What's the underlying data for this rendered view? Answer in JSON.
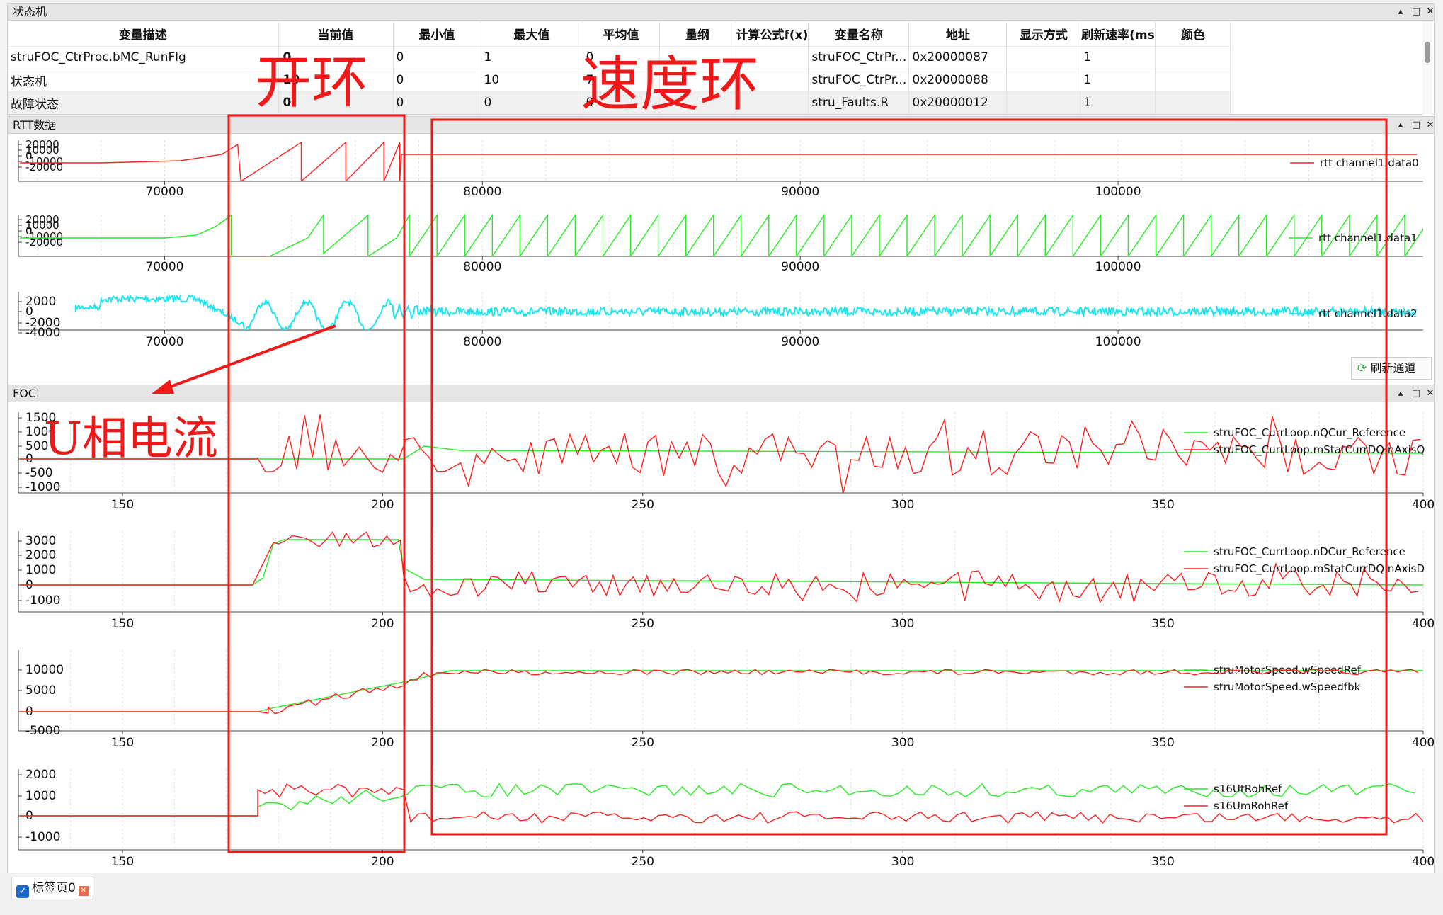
{
  "state_panel": {
    "title": "状态机",
    "columns": [
      "变量描述",
      "当前值",
      "最小值",
      "最大值",
      "平均值",
      "量纲",
      "计算公式f(x)",
      "变量名称",
      "地址",
      "显示方式",
      "刷新速率(ms",
      "颜色"
    ],
    "rows": [
      [
        "struFOC_CtrProc.bMC_RunFlg",
        "0",
        "0",
        "1",
        "0",
        "",
        "",
        "struFOC_CtrPr...",
        "0x20000087",
        "",
        "1",
        ""
      ],
      [
        "状态机",
        "10",
        "0",
        "10",
        "7",
        "",
        "",
        "struFOC_CtrPr...",
        "0x20000088",
        "",
        "1",
        ""
      ],
      [
        "故障状态",
        "0",
        "0",
        "0",
        "0",
        "",
        "",
        "stru_Faults.R",
        "0x20000012",
        "",
        "1",
        ""
      ]
    ]
  },
  "window_controls": {
    "float": "▴",
    "maximize": "□",
    "close": "✕"
  },
  "rtt_panel": {
    "title": "RTT数据",
    "refresh_label": "刷新通道"
  },
  "foc_panel": {
    "title": "FOC"
  },
  "bottom_tab": {
    "label": "标签页0"
  },
  "annotations": {
    "open_loop": "开环",
    "speed_loop": "速度环",
    "u_phase": "U相电流"
  },
  "colors": {
    "red": "#ff2020",
    "green": "#22ee22",
    "cyan": "#1ee4ee",
    "annotation": "#f01818"
  },
  "chart_data": [
    {
      "type": "line",
      "x_ticks": [
        70000,
        80000,
        90000,
        100000
      ],
      "xlim": [
        65400,
        109600
      ],
      "y_ticks": [
        "20000",
        "10000",
        "0",
        "-10000",
        "-20000"
      ],
      "series": [
        {
          "name": "rtt channel1.data0",
          "color": "red"
        }
      ]
    },
    {
      "type": "line",
      "x_ticks": [
        70000,
        80000,
        90000,
        100000
      ],
      "xlim": [
        65400,
        109600
      ],
      "y_ticks": [
        "20000",
        "10000",
        "0",
        "-10000",
        "-20000"
      ],
      "series": [
        {
          "name": "rtt channel1.data1",
          "color": "green"
        }
      ]
    },
    {
      "type": "line",
      "x_ticks": [
        70000,
        80000,
        90000,
        100000
      ],
      "xlim": [
        65400,
        109600
      ],
      "y_ticks": [
        "2000",
        "0",
        "-2000",
        "-4000"
      ],
      "series": [
        {
          "name": "rtt channel1.data2",
          "color": "cyan"
        }
      ]
    },
    {
      "type": "line",
      "x_ticks": [
        150,
        200,
        250,
        300,
        350,
        400
      ],
      "xlim": [
        130,
        400
      ],
      "y_ticks": [
        "1500",
        "1000",
        "500",
        "0",
        "-500",
        "-1000"
      ],
      "series": [
        {
          "name": "struFOC_CurrLoop.nQCur_Reference",
          "color": "green"
        },
        {
          "name": "struFOC_CurrLoop.mStatCurrDQ.nAxisQ",
          "color": "red"
        }
      ]
    },
    {
      "type": "line",
      "x_ticks": [
        150,
        200,
        250,
        300,
        350,
        400
      ],
      "xlim": [
        130,
        400
      ],
      "y_ticks": [
        "3000",
        "2000",
        "1000",
        "0",
        "-1000"
      ],
      "series": [
        {
          "name": "struFOC_CurrLoop.nDCur_Reference",
          "color": "green"
        },
        {
          "name": "struFOC_CurrLoop.mStatCurrDQ.nAxisD",
          "color": "red"
        }
      ]
    },
    {
      "type": "line",
      "x_ticks": [
        150,
        200,
        250,
        300,
        350,
        400
      ],
      "xlim": [
        130,
        400
      ],
      "y_ticks": [
        "10000",
        "5000",
        "0",
        "-5000"
      ],
      "series": [
        {
          "name": "struMotorSpeed.wSpeedRef",
          "color": "green"
        },
        {
          "name": "struMotorSpeed.wSpeedfbk",
          "color": "red"
        }
      ]
    },
    {
      "type": "line",
      "x_ticks": [
        150,
        200,
        250,
        300,
        350,
        400
      ],
      "xlim": [
        130,
        400
      ],
      "y_ticks": [
        "2000",
        "1000",
        "0",
        "-1000"
      ],
      "series": [
        {
          "name": "s16UtRohRef",
          "color": "green"
        },
        {
          "name": "s16UmRohRef",
          "color": "red"
        }
      ]
    }
  ]
}
